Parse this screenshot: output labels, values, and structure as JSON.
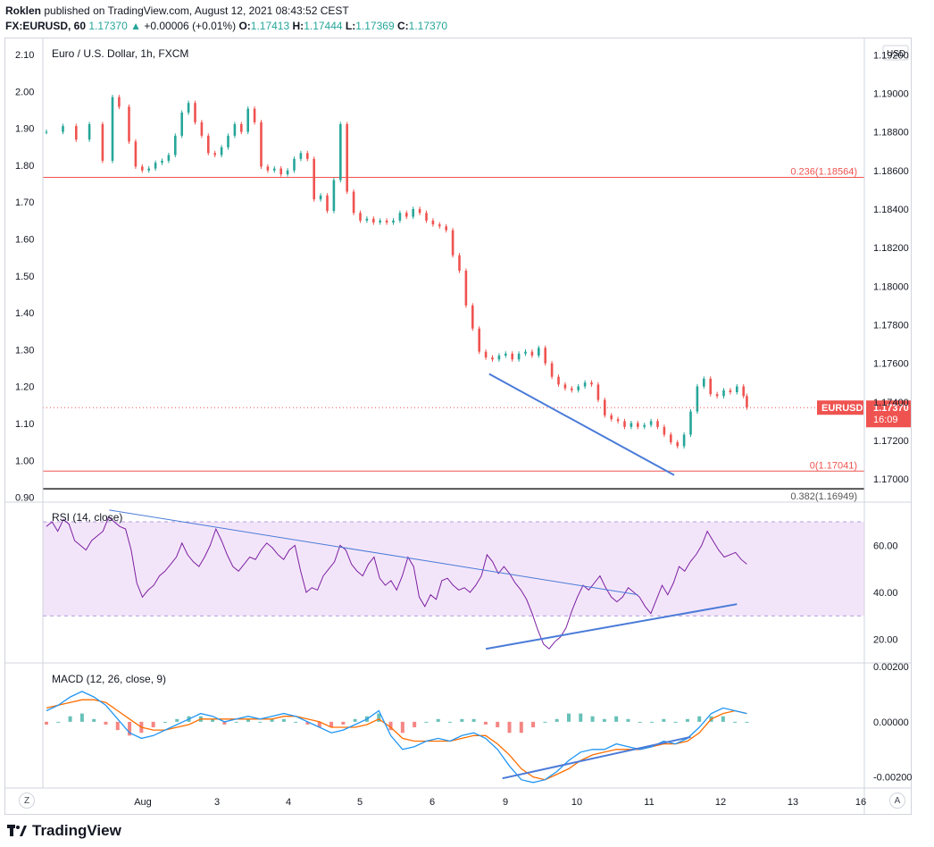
{
  "header": {
    "author": "Roklen",
    "published_text": "published on TradingView.com, August 12, 2021 08:43:52 CEST",
    "symbol": "FX:EURUSD, 60",
    "last": "1.17370",
    "change_arrow": "▲",
    "change": "+0.00006 (+0.01%)",
    "o_label": "O:",
    "o_value": "1.17413",
    "h_label": "H:",
    "h_value": "1.17444",
    "l_label": "L:",
    "l_value": "1.17369",
    "c_label": "C:",
    "c_value": "1.17370"
  },
  "price_pane": {
    "title": "Euro / U.S. Dollar, 1h, FXCM",
    "currency_badge": "USD",
    "price_tag": {
      "symbol": "EURUSD",
      "price": "1.17370",
      "countdown": "16:09"
    },
    "fib_labels": {
      "f236": "0.236(1.18564)",
      "f0": "0(1.17041)",
      "f382": "0.382(1.16949)"
    }
  },
  "rsi_pane": {
    "title": "RSI (14, close)"
  },
  "macd_pane": {
    "title": "MACD (12, 26, close, 9)"
  },
  "time_axis": {
    "left_button": "Z",
    "right_button": "A"
  },
  "footer": {
    "brand": "TradingView"
  },
  "colors": {
    "up": "#26a69a",
    "down": "#ef5350",
    "fib_red": "#ef5350",
    "trendline": "#4a7bd8",
    "rsi_line": "#7b1fa2",
    "rsi_band": "#f3e5f9",
    "macd_line": "#2196f3",
    "signal_line": "#ff6d00",
    "axis_text": "#131722"
  },
  "chart_data": [
    {
      "type": "candlestick",
      "title": "Euro / U.S. Dollar, 1h, FXCM",
      "x_ticks": [
        "Aug",
        "3",
        "4",
        "5",
        "6",
        "9",
        "10",
        "11",
        "12",
        "13",
        "16"
      ],
      "right_axis_ticks": [
        "1.19200",
        "1.19000",
        "1.18800",
        "1.18600",
        "1.18400",
        "1.18200",
        "1.18000",
        "1.17800",
        "1.17600",
        "1.17400",
        "1.17200",
        "1.17000"
      ],
      "left_axis_ticks": [
        "2.10",
        "2.00",
        "1.90",
        "1.80",
        "1.70",
        "1.60",
        "1.50",
        "1.40",
        "1.30",
        "1.20",
        "1.10",
        "1.00",
        "0.90"
      ],
      "ylim": [
        1.1688,
        1.1928
      ],
      "close_path": [
        [
          0,
          1.188
        ],
        [
          5,
          1.1883
        ],
        [
          9,
          1.1876
        ],
        [
          13,
          1.1884
        ],
        [
          17,
          1.1865
        ],
        [
          20,
          1.1898
        ],
        [
          22,
          1.1893
        ],
        [
          25,
          1.1875
        ],
        [
          27,
          1.1862
        ],
        [
          29,
          1.186
        ],
        [
          31,
          1.1861
        ],
        [
          33,
          1.1864
        ],
        [
          35,
          1.1865
        ],
        [
          37,
          1.1868
        ],
        [
          39,
          1.1878
        ],
        [
          41,
          1.189
        ],
        [
          43,
          1.1895
        ],
        [
          45,
          1.1885
        ],
        [
          47,
          1.1878
        ],
        [
          49,
          1.1869
        ],
        [
          51,
          1.1868
        ],
        [
          53,
          1.1872
        ],
        [
          55,
          1.1878
        ],
        [
          57,
          1.1884
        ],
        [
          59,
          1.188
        ],
        [
          61,
          1.1892
        ],
        [
          63,
          1.1885
        ],
        [
          65,
          1.1862
        ],
        [
          67,
          1.186
        ],
        [
          69,
          1.1861
        ],
        [
          71,
          1.1858
        ],
        [
          73,
          1.186
        ],
        [
          75,
          1.1866
        ],
        [
          77,
          1.1869
        ],
        [
          79,
          1.1866
        ],
        [
          81,
          1.1845
        ],
        [
          83,
          1.1847
        ],
        [
          85,
          1.1839
        ],
        [
          87,
          1.1855
        ],
        [
          89,
          1.1884
        ],
        [
          91,
          1.1849
        ],
        [
          93,
          1.1838
        ],
        [
          95,
          1.1834
        ],
        [
          97,
          1.1835
        ],
        [
          99,
          1.1833
        ],
        [
          101,
          1.1834
        ],
        [
          103,
          1.1833
        ],
        [
          105,
          1.1834
        ],
        [
          107,
          1.1838
        ],
        [
          109,
          1.1836
        ],
        [
          111,
          1.184
        ],
        [
          113,
          1.1838
        ],
        [
          115,
          1.1834
        ],
        [
          117,
          1.1832
        ],
        [
          119,
          1.1831
        ],
        [
          121,
          1.1829
        ],
        [
          123,
          1.1816
        ],
        [
          125,
          1.1808
        ],
        [
          127,
          1.179
        ],
        [
          129,
          1.1778
        ],
        [
          131,
          1.1766
        ],
        [
          133,
          1.1763
        ],
        [
          135,
          1.1762
        ],
        [
          137,
          1.1764
        ],
        [
          139,
          1.1765
        ],
        [
          141,
          1.1762
        ],
        [
          143,
          1.1765
        ],
        [
          145,
          1.1766
        ],
        [
          147,
          1.1764
        ],
        [
          149,
          1.1768
        ],
        [
          151,
          1.176
        ],
        [
          153,
          1.1753
        ],
        [
          155,
          1.1749
        ],
        [
          157,
          1.1747
        ],
        [
          159,
          1.1746
        ],
        [
          161,
          1.1748
        ],
        [
          163,
          1.175
        ],
        [
          165,
          1.1749
        ],
        [
          167,
          1.1741
        ],
        [
          169,
          1.1733
        ],
        [
          171,
          1.1731
        ],
        [
          173,
          1.173
        ],
        [
          175,
          1.1727
        ],
        [
          177,
          1.1729
        ],
        [
          179,
          1.1727
        ],
        [
          181,
          1.1728
        ],
        [
          183,
          1.173
        ],
        [
          185,
          1.1727
        ],
        [
          187,
          1.1723
        ],
        [
          189,
          1.1719
        ],
        [
          191,
          1.1717
        ],
        [
          193,
          1.1723
        ],
        [
          195,
          1.1735
        ],
        [
          197,
          1.1748
        ],
        [
          199,
          1.1752
        ],
        [
          201,
          1.1744
        ],
        [
          203,
          1.1743
        ],
        [
          205,
          1.1746
        ],
        [
          207,
          1.1745
        ],
        [
          209,
          1.1748
        ],
        [
          211,
          1.1743
        ],
        [
          212,
          1.1737
        ]
      ],
      "annotations": [
        "0.236(1.18564)",
        "0(1.17041)",
        "0.382(1.16949)"
      ]
    },
    {
      "type": "line",
      "title": "RSI (14, close)",
      "right_axis_ticks": [
        "60.00",
        "40.00",
        "20.00"
      ],
      "ylim": [
        10,
        78
      ],
      "band": [
        30,
        70
      ],
      "values": [
        68,
        70,
        66,
        71,
        69,
        62,
        60,
        58,
        62,
        64,
        66,
        72,
        70,
        68,
        67,
        58,
        44,
        38,
        41,
        43,
        47,
        49,
        52,
        55,
        61,
        56,
        53,
        51,
        55,
        60,
        67,
        62,
        56,
        51,
        49,
        52,
        55,
        54,
        58,
        61,
        59,
        56,
        54,
        58,
        60,
        49,
        40,
        42,
        41,
        47,
        50,
        53,
        60,
        58,
        52,
        49,
        47,
        52,
        55,
        46,
        43,
        45,
        41,
        47,
        55,
        51,
        38,
        34,
        39,
        37,
        45,
        46,
        43,
        41,
        42,
        40,
        43,
        47,
        56,
        53,
        48,
        51,
        48,
        44,
        41,
        37,
        31,
        24,
        18,
        16,
        19,
        21,
        25,
        32,
        38,
        43,
        41,
        44,
        47,
        42,
        38,
        36,
        38,
        42,
        40,
        38,
        34,
        31,
        37,
        43,
        39,
        44,
        51,
        49,
        53,
        56,
        60,
        66,
        62,
        58,
        55,
        56,
        57,
        54,
        52
      ],
      "annotations": [
        "falling trendline",
        "rising support line"
      ]
    },
    {
      "type": "line",
      "title": "MACD (12, 26, close, 9)",
      "right_axis_ticks": [
        "0.00200",
        "0.00000",
        "-0.00200"
      ],
      "ylim": [
        -0.0024,
        0.0021
      ],
      "series": [
        {
          "values": [
            0.0004,
            0.0006,
            0.0009,
            0.0011,
            0.0009,
            0.0006,
            0.0001,
            -0.0004,
            -0.0006,
            -0.0005,
            -0.0003,
            -0.0001,
            0.0001,
            0.0003,
            0.0002,
            0.0,
            0.0001,
            0.0002,
            0.0001,
            0.0002,
            0.0003,
            0.0002,
            0.0,
            -0.0002,
            -0.0004,
            -0.0003,
            -0.0001,
            0.0001,
            0.0004,
            -0.0005,
            -0.001,
            -0.0009,
            -0.0007,
            -0.0006,
            -0.0007,
            -0.0005,
            -0.0004,
            -0.0006,
            -0.001,
            -0.0016,
            -0.0021,
            -0.0022,
            -0.0021,
            -0.0018,
            -0.0014,
            -0.0011,
            -0.001,
            -0.001,
            -0.0008,
            -0.0009,
            -0.001,
            -0.0009,
            -0.0007,
            -0.0008,
            -0.0006,
            -0.0002,
            0.0003,
            0.0005,
            0.0004,
            0.0003
          ]
        },
        {
          "values": [
            0.0005,
            0.0006,
            0.0007,
            0.0008,
            0.0008,
            0.0007,
            0.0004,
            0.0001,
            -0.0002,
            -0.0003,
            -0.0003,
            -0.0002,
            -0.0001,
            0.0001,
            0.0001,
            0.0001,
            0.0001,
            0.0001,
            0.0001,
            0.0001,
            0.0002,
            0.0002,
            0.0001,
            0.0,
            -0.0002,
            -0.0002,
            -0.0002,
            -0.0001,
            0.0001,
            -0.0002,
            -0.0006,
            -0.0007,
            -0.0007,
            -0.0007,
            -0.0007,
            -0.0006,
            -0.0005,
            -0.0005,
            -0.0008,
            -0.0012,
            -0.0017,
            -0.002,
            -0.0021,
            -0.0019,
            -0.0017,
            -0.0014,
            -0.0012,
            -0.0011,
            -0.001,
            -0.001,
            -0.001,
            -0.0009,
            -0.0008,
            -0.0008,
            -0.0007,
            -0.0004,
            0.0001,
            0.0003,
            0.0004,
            0.0003
          ]
        }
      ],
      "annotations": [
        "rising trendline under MACD"
      ]
    }
  ]
}
